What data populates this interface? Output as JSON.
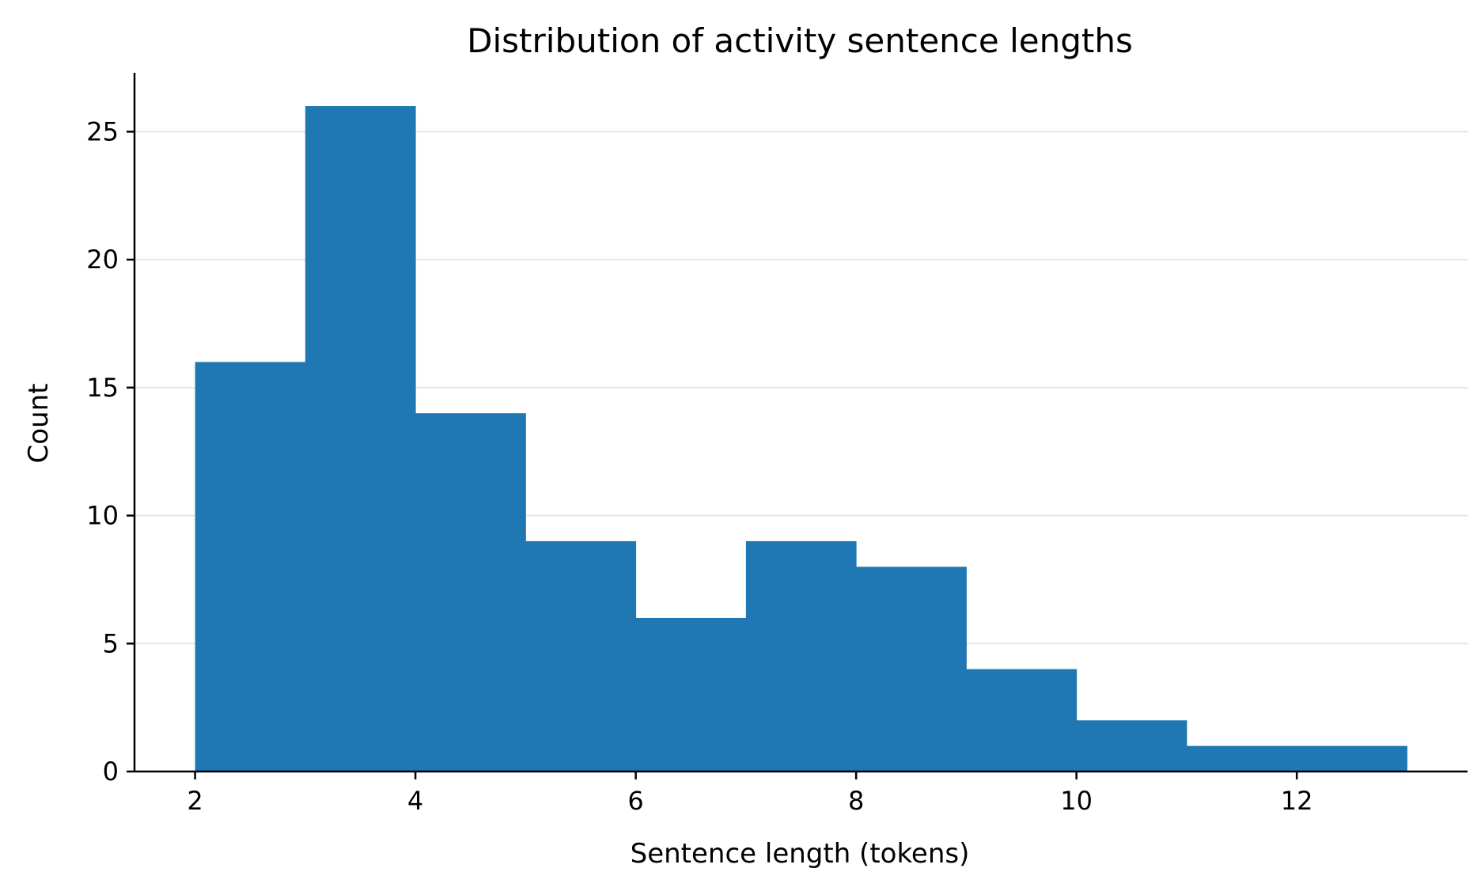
{
  "chart_data": {
    "type": "bar",
    "title": "Distribution of activity sentence lengths",
    "xlabel": "Sentence length (tokens)",
    "ylabel": "Count",
    "bin_edges": [
      2,
      3,
      4,
      5,
      6,
      7,
      8,
      9,
      10,
      11,
      12,
      13
    ],
    "values": [
      16,
      26,
      14,
      9,
      6,
      9,
      8,
      4,
      2,
      1,
      1
    ],
    "xlim": [
      1.45,
      13.55
    ],
    "ylim": [
      0,
      27.3
    ],
    "x_ticks": [
      2,
      4,
      6,
      8,
      10,
      12
    ],
    "x_tick_labels": [
      "2",
      "4",
      "6",
      "8",
      "10",
      "12"
    ],
    "y_ticks": [
      0,
      5,
      10,
      15,
      20,
      25
    ],
    "y_tick_labels": [
      "0",
      "5",
      "10",
      "15",
      "20",
      "25"
    ],
    "grid": "y-only",
    "legend": "none",
    "bar_color": "#1f77b4",
    "grid_color": "#e6e6e6"
  }
}
